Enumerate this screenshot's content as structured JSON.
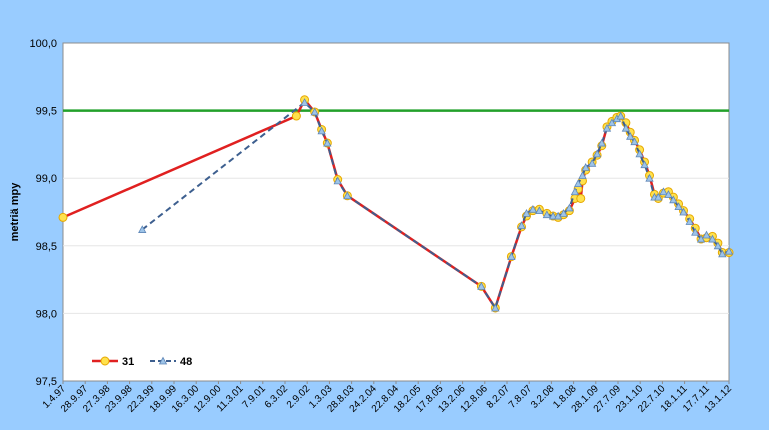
{
  "chart_data": {
    "type": "line",
    "title": "",
    "xlabel": "",
    "ylabel": "metriä mpy",
    "ylim": [
      97.5,
      100.0
    ],
    "yticks": [
      "97,5",
      "98,0",
      "98,5",
      "99,0",
      "99,5",
      "100,0"
    ],
    "xlim": [
      "1997-04-14",
      "2012-01-13"
    ],
    "x_tick_labels": [
      "1.4.97",
      "28.9.97",
      "27.3.98",
      "23.9.98",
      "22.3.99",
      "18.9.99",
      "16.3.00",
      "12.9.00",
      "11.3.01",
      "7.9.01",
      "6.3.02",
      "2.9.02",
      "1.3.03",
      "28.8.03",
      "24.2.04",
      "22.8.04",
      "18.2.05",
      "17.8.05",
      "13.2.06",
      "12.8.06",
      "8.2.07",
      "7.8.07",
      "3.2.08",
      "1.8.08",
      "28.1.09",
      "27.7.09",
      "23.1.10",
      "22.7.10",
      "18.1.11",
      "17.7.11",
      "13.1.12"
    ],
    "reference_line": {
      "value": 99.5,
      "color": "#22a02a"
    },
    "legend": {
      "placement": "bottom-left"
    },
    "grid": true,
    "colors": {
      "background": "#99ccff",
      "plot": "#ffffff"
    },
    "series": [
      {
        "name": "31",
        "color": "#e02020",
        "marker_fill": "#ffe14d",
        "marker_edge": "#e6a800",
        "points": [
          [
            "1997-04-14",
            98.71
          ],
          [
            "2002-06-15",
            99.46
          ],
          [
            "2002-08-20",
            99.58
          ],
          [
            "2002-11-10",
            99.49
          ],
          [
            "2003-01-05",
            99.36
          ],
          [
            "2003-02-20",
            99.26
          ],
          [
            "2003-05-15",
            98.99
          ],
          [
            "2003-08-01",
            98.87
          ],
          [
            "2006-07-20",
            98.2
          ],
          [
            "2006-11-10",
            98.04
          ],
          [
            "2007-03-20",
            98.42
          ],
          [
            "2007-06-10",
            98.64
          ],
          [
            "2007-07-20",
            98.72
          ],
          [
            "2007-09-10",
            98.76
          ],
          [
            "2007-11-01",
            98.77
          ],
          [
            "2008-01-01",
            98.74
          ],
          [
            "2008-02-20",
            98.72
          ],
          [
            "2008-04-01",
            98.71
          ],
          [
            "2008-05-15",
            98.73
          ],
          [
            "2008-07-01",
            98.76
          ],
          [
            "2008-08-15",
            98.85
          ],
          [
            "2008-09-10",
            98.92
          ],
          [
            "2008-10-01",
            98.85
          ],
          [
            "2008-10-15",
            98.98
          ],
          [
            "2008-11-10",
            99.06
          ],
          [
            "2009-01-01",
            99.12
          ],
          [
            "2009-02-10",
            99.17
          ],
          [
            "2009-03-20",
            99.24
          ],
          [
            "2009-05-01",
            99.38
          ],
          [
            "2009-06-10",
            99.42
          ],
          [
            "2009-07-20",
            99.45
          ],
          [
            "2009-08-20",
            99.46
          ],
          [
            "2009-10-01",
            99.41
          ],
          [
            "2009-11-05",
            99.34
          ],
          [
            "2009-12-10",
            99.28
          ],
          [
            "2010-01-20",
            99.21
          ],
          [
            "2010-03-01",
            99.12
          ],
          [
            "2010-04-10",
            99.02
          ],
          [
            "2010-05-20",
            98.88
          ],
          [
            "2010-06-20",
            98.85
          ],
          [
            "2010-08-01",
            98.89
          ],
          [
            "2010-09-10",
            98.9
          ],
          [
            "2010-10-20",
            98.86
          ],
          [
            "2010-12-01",
            98.81
          ],
          [
            "2011-01-10",
            98.76
          ],
          [
            "2011-03-01",
            98.7
          ],
          [
            "2011-04-15",
            98.63
          ],
          [
            "2011-06-01",
            98.55
          ],
          [
            "2011-07-15",
            98.56
          ],
          [
            "2011-09-01",
            98.57
          ],
          [
            "2011-10-15",
            98.52
          ],
          [
            "2011-11-20",
            98.45
          ],
          [
            "2012-01-13",
            98.45
          ]
        ]
      },
      {
        "name": "48",
        "color": "#3d5f8f",
        "dashed": true,
        "marker_fill": "#9ec4e8",
        "marker_edge": "#5f87b8",
        "points": [
          [
            "1999-01-15",
            98.62
          ],
          [
            "2002-08-20",
            99.56
          ],
          [
            "2002-11-10",
            99.49
          ],
          [
            "2003-01-05",
            99.35
          ],
          [
            "2003-02-20",
            99.26
          ],
          [
            "2003-05-15",
            98.98
          ],
          [
            "2003-08-01",
            98.87
          ],
          [
            "2006-07-20",
            98.2
          ],
          [
            "2006-11-10",
            98.04
          ],
          [
            "2007-03-20",
            98.42
          ],
          [
            "2007-06-10",
            98.65
          ],
          [
            "2007-07-20",
            98.74
          ],
          [
            "2007-09-10",
            98.77
          ],
          [
            "2007-11-01",
            98.76
          ],
          [
            "2008-01-01",
            98.73
          ],
          [
            "2008-02-20",
            98.72
          ],
          [
            "2008-04-01",
            98.72
          ],
          [
            "2008-05-15",
            98.74
          ],
          [
            "2008-07-01",
            98.78
          ],
          [
            "2008-08-15",
            98.9
          ],
          [
            "2008-09-10",
            98.96
          ],
          [
            "2008-10-15",
            99.02
          ],
          [
            "2008-11-10",
            99.08
          ],
          [
            "2009-01-01",
            99.11
          ],
          [
            "2009-02-10",
            99.18
          ],
          [
            "2009-03-20",
            99.26
          ],
          [
            "2009-05-01",
            99.37
          ],
          [
            "2009-06-10",
            99.41
          ],
          [
            "2009-07-20",
            99.44
          ],
          [
            "2009-08-20",
            99.46
          ],
          [
            "2009-10-01",
            99.37
          ],
          [
            "2009-11-05",
            99.31
          ],
          [
            "2009-12-10",
            99.27
          ],
          [
            "2010-01-20",
            99.18
          ],
          [
            "2010-03-01",
            99.1
          ],
          [
            "2010-04-10",
            99.0
          ],
          [
            "2010-05-20",
            98.86
          ],
          [
            "2010-06-20",
            98.86
          ],
          [
            "2010-08-01",
            98.9
          ],
          [
            "2010-09-10",
            98.88
          ],
          [
            "2010-10-20",
            98.84
          ],
          [
            "2010-12-01",
            98.79
          ],
          [
            "2011-01-10",
            98.75
          ],
          [
            "2011-03-01",
            98.68
          ],
          [
            "2011-04-15",
            98.6
          ],
          [
            "2011-06-01",
            98.55
          ],
          [
            "2011-07-15",
            98.58
          ],
          [
            "2011-09-01",
            98.55
          ],
          [
            "2011-10-15",
            98.5
          ],
          [
            "2011-11-20",
            98.44
          ],
          [
            "2012-01-13",
            98.46
          ]
        ]
      }
    ]
  }
}
